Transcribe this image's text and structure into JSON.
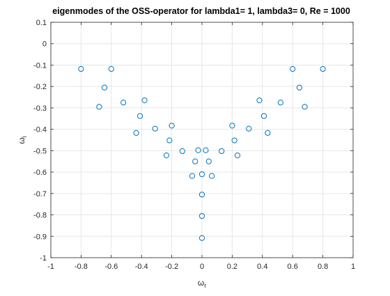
{
  "chart_data": {
    "type": "scatter",
    "title": "eigenmodes of the OSS-operator for lambda1= 1, lambda3= 0, Re = 1000",
    "xlabel": {
      "symbol": "ω",
      "subscript": "r"
    },
    "ylabel": {
      "symbol": "ω",
      "subscript": "i"
    },
    "xlim": [
      -1,
      1
    ],
    "ylim": [
      -1,
      0.1
    ],
    "xticks": [
      -1,
      -0.8,
      -0.6,
      -0.4,
      -0.2,
      0,
      0.2,
      0.4,
      0.6,
      0.8,
      1
    ],
    "xtick_labels": [
      "-1",
      "-0.8",
      "-0.6",
      "-0.4",
      "-0.2",
      "0",
      "0.2",
      "0.4",
      "0.6",
      "0.8",
      "1"
    ],
    "yticks": [
      0.1,
      0,
      -0.1,
      -0.2,
      -0.3,
      -0.4,
      -0.5,
      -0.6,
      -0.7,
      -0.8,
      -0.9,
      -1
    ],
    "ytick_labels": [
      "0.1",
      "0",
      "-0.1",
      "-0.2",
      "-0.3",
      "-0.4",
      "-0.5",
      "-0.6",
      "-0.7",
      "-0.8",
      "-0.9",
      "-1"
    ],
    "grid": true,
    "marker": "circle-open",
    "color": "#0072BD",
    "points": [
      {
        "x": -0.8,
        "y": -0.118
      },
      {
        "x": -0.6,
        "y": -0.118
      },
      {
        "x": 0.6,
        "y": -0.118
      },
      {
        "x": 0.8,
        "y": -0.118
      },
      {
        "x": -0.645,
        "y": -0.205
      },
      {
        "x": 0.645,
        "y": -0.205
      },
      {
        "x": -0.38,
        "y": -0.265
      },
      {
        "x": 0.38,
        "y": -0.265
      },
      {
        "x": -0.52,
        "y": -0.275
      },
      {
        "x": 0.52,
        "y": -0.275
      },
      {
        "x": -0.68,
        "y": -0.295
      },
      {
        "x": 0.68,
        "y": -0.295
      },
      {
        "x": -0.41,
        "y": -0.338
      },
      {
        "x": 0.41,
        "y": -0.338
      },
      {
        "x": -0.2,
        "y": -0.383
      },
      {
        "x": 0.2,
        "y": -0.383
      },
      {
        "x": -0.31,
        "y": -0.397
      },
      {
        "x": 0.31,
        "y": -0.397
      },
      {
        "x": -0.435,
        "y": -0.417
      },
      {
        "x": 0.435,
        "y": -0.417
      },
      {
        "x": -0.215,
        "y": -0.452
      },
      {
        "x": 0.215,
        "y": -0.452
      },
      {
        "x": -0.025,
        "y": -0.498
      },
      {
        "x": 0.025,
        "y": -0.498
      },
      {
        "x": -0.13,
        "y": -0.502
      },
      {
        "x": 0.13,
        "y": -0.502
      },
      {
        "x": -0.235,
        "y": -0.522
      },
      {
        "x": 0.235,
        "y": -0.522
      },
      {
        "x": -0.045,
        "y": -0.55
      },
      {
        "x": 0.045,
        "y": -0.55
      },
      {
        "x": 0.0,
        "y": -0.61
      },
      {
        "x": -0.065,
        "y": -0.618
      },
      {
        "x": 0.065,
        "y": -0.618
      },
      {
        "x": 0.0,
        "y": -0.705
      },
      {
        "x": 0.0,
        "y": -0.805
      },
      {
        "x": 0.0,
        "y": -0.908
      }
    ]
  }
}
